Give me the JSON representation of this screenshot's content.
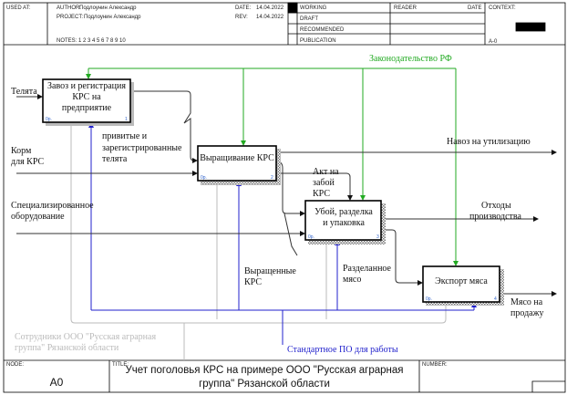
{
  "header": {
    "used_at": "USED AT:",
    "author_label": "AUTHOR:",
    "author": "Подлоунин Александр",
    "project_label": "PROJECT:",
    "project": "Подлоунин Александр",
    "date_label": "DATE:",
    "date": "14.04.2022",
    "rev_label": "REV:",
    "rev": "14.04.2022",
    "notes": "NOTES: 1 2 3 4 5 6 7 8 9 10",
    "working": "WORKING",
    "draft": "DRAFT",
    "recommended": "RECOMMENDED",
    "publication": "PUBLICATION",
    "reader": "READER",
    "reader_date": "DATE",
    "context": "CONTEXT:",
    "context_node": "A-0"
  },
  "boxes": [
    {
      "title_1": "Завоз и регистрация",
      "title_2": "КРС на",
      "title_3": "предприятие",
      "cost": "0р.",
      "number": "1"
    },
    {
      "title_1": "Выращивание КРС",
      "cost": "0р.",
      "number": "2"
    },
    {
      "title_1": "Убой, разделка",
      "title_2": "и упаковка",
      "cost": "0р.",
      "number": "3"
    },
    {
      "title_1": "Экспорт мяса",
      "cost": "0р.",
      "number": "4"
    }
  ],
  "arrows": {
    "calves": "Телята",
    "feed_1": "Корм",
    "feed_2": "для КРС",
    "equipment_1": "Специализированное",
    "equipment_2": "оборудование",
    "law": "Законодательство РФ",
    "vaccinated_1": "привитые и",
    "vaccinated_2": "зарегистрированные",
    "vaccinated_3": "телята",
    "manure": "Навоз на утилизацию",
    "slaughter_act_1": "Акт на",
    "slaughter_act_2": "забой",
    "slaughter_act_3": "КРС",
    "waste_1": "Отходы",
    "waste_2": "производства",
    "grown_1": "Выращенные",
    "grown_2": "КРС",
    "cut_meat_1": "Разделанное",
    "cut_meat_2": "мясо",
    "meat_sale_1": "Мясо на",
    "meat_sale_2": "продажу",
    "staff_1": "Сотрудники ООО \"Русская аграрная",
    "staff_2": "группа\" Рязанской области",
    "software": "Стандартное ПО для работы"
  },
  "footer": {
    "node_label": "NODE:",
    "node": "A0",
    "title_label": "TITLE:",
    "title_1": "Учет поголовья КРС на примере  ООО \"Русская аграрная",
    "title_2": "группа\"  Рязанской области",
    "number_label": "NUMBER:"
  },
  "colors": {
    "control": "#22aa22",
    "mechanism": "#2222cc",
    "gray": "#bbbbbb"
  }
}
